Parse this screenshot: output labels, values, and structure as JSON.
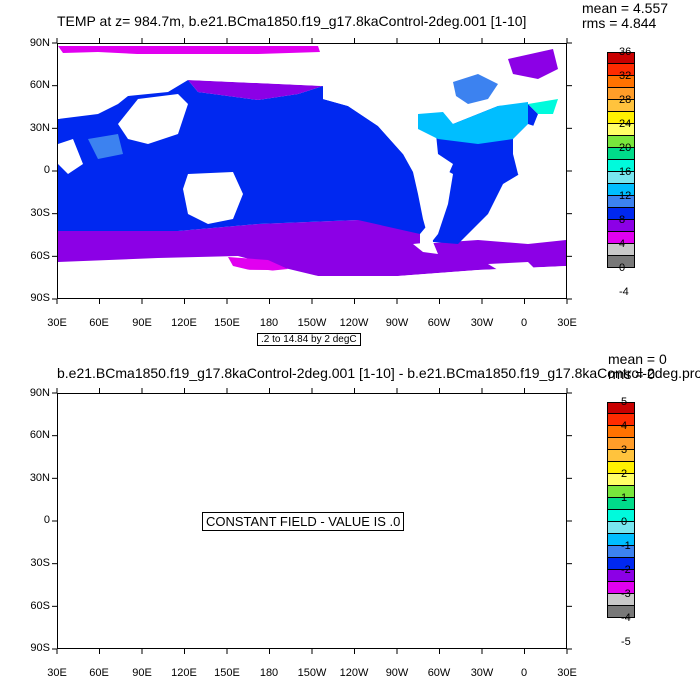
{
  "top_panel": {
    "title": "TEMP at z= 984.7m, b.e21.BCma1850.f19_g17.8kaControl-2deg.001 [1-10]",
    "mean": "mean = 4.557",
    "rms": "rms = 4.844",
    "contour_info": ".2 to 14.84 by 2 degC",
    "colorbar_labels": [
      "36",
      "32",
      "28",
      "24",
      "20",
      "16",
      "12",
      "8",
      "4",
      "0",
      "-4"
    ],
    "colorbar_colors": [
      "#c80000",
      "#ff2b00",
      "#ff7200",
      "#ff9d29",
      "#ffc33d",
      "#fff000",
      "#ffff66",
      "#78e63c",
      "#00dc8a",
      "#00fadc",
      "#78e6f0",
      "#00beff",
      "#3c82f0",
      "#0028f0",
      "#8c00e6",
      "#e100f0",
      "#c8c8c8",
      "#787878"
    ]
  },
  "bottom_panel": {
    "title": "b.e21.BCma1850.f19_g17.8kaControl-2deg.001 [1-10] - b.e21.BCma1850.f19_g17.8kaControl-2deg.pro",
    "mean": "mean = 0",
    "rms": "rms = 0",
    "constant_field": "CONSTANT FIELD - VALUE IS .0",
    "colorbar_labels": [
      "5",
      "4",
      "3",
      "2",
      "1",
      "0",
      "-1",
      "-2",
      "-3",
      "-4",
      "-5"
    ],
    "colorbar_colors": [
      "#c80000",
      "#ff2b00",
      "#ff7200",
      "#ff9d29",
      "#ffc33d",
      "#fff000",
      "#ffff66",
      "#78e63c",
      "#00dc8a",
      "#00fadc",
      "#78e6f0",
      "#00beff",
      "#3c82f0",
      "#0028f0",
      "#8c00e6",
      "#e100f0",
      "#c8c8c8",
      "#787878"
    ]
  },
  "x_ticks": [
    "30E",
    "60E",
    "90E",
    "120E",
    "150E",
    "180",
    "150W",
    "120W",
    "90W",
    "60W",
    "30W",
    "0",
    "30E"
  ],
  "y_ticks": [
    "90N",
    "60N",
    "30N",
    "0",
    "30S",
    "60S",
    "90S"
  ]
}
